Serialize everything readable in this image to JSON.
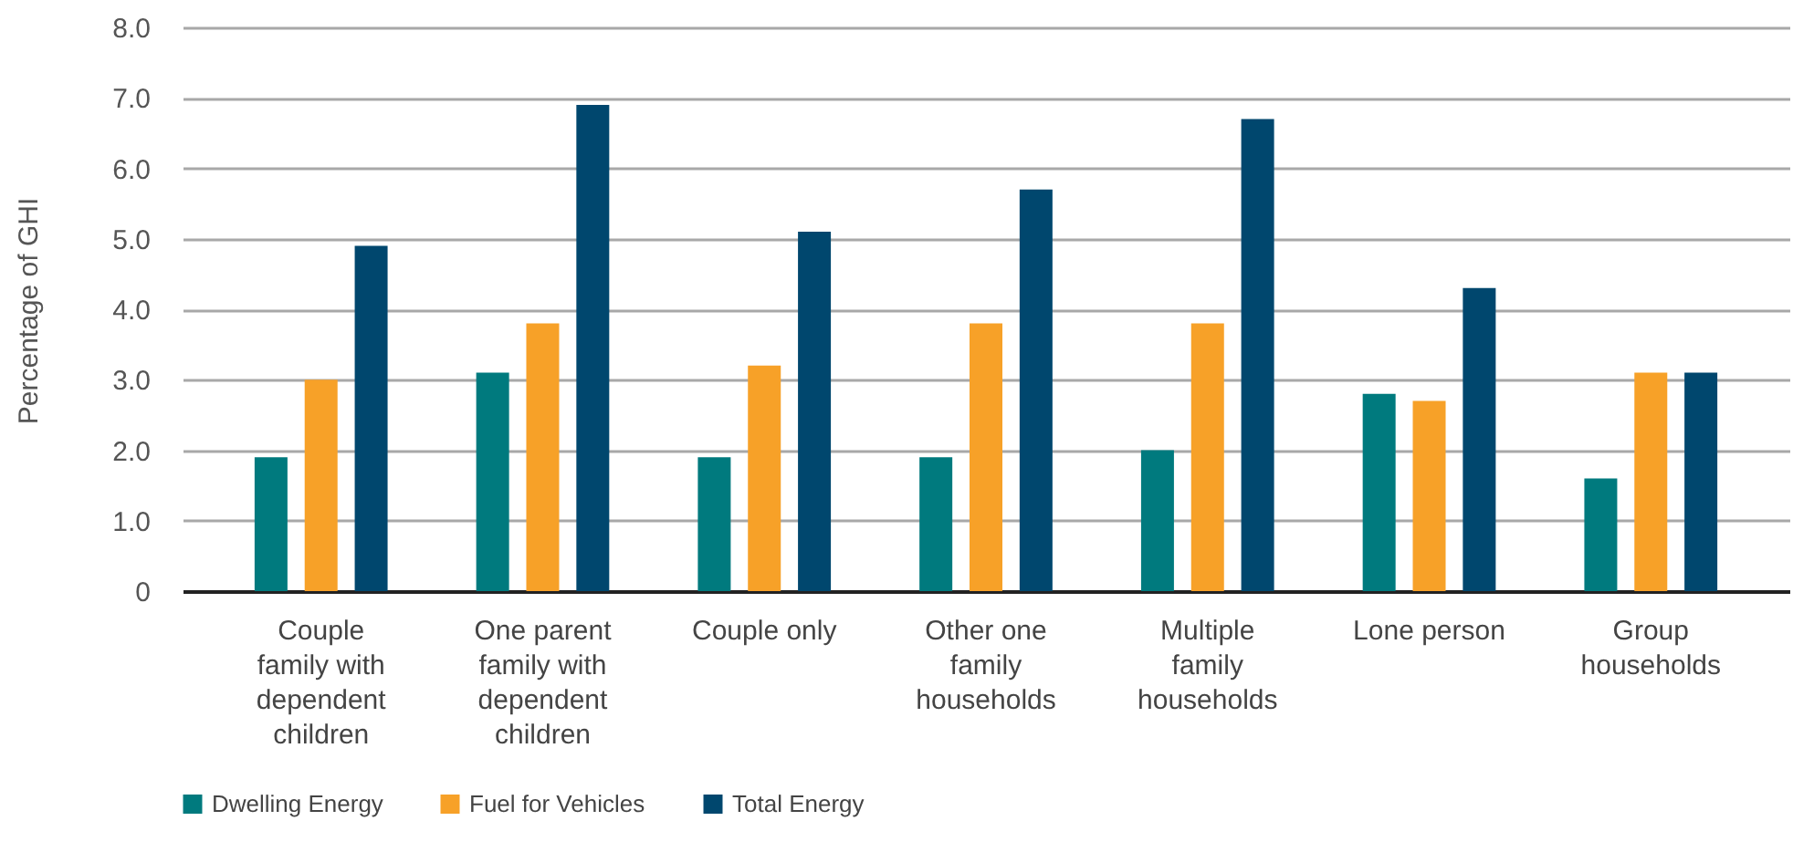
{
  "chart_data": {
    "type": "bar",
    "ylabel": "Percentage of GHI",
    "categories": [
      "Couple family with dependent children",
      "One parent family with dependent children",
      "Couple only",
      "Other one family households",
      "Multiple family households",
      "Lone person",
      "Group households"
    ],
    "series": [
      {
        "name": "Dwelling Energy",
        "color": "#007a7e",
        "values": [
          1.9,
          3.1,
          1.9,
          1.9,
          2.0,
          2.8,
          1.6
        ]
      },
      {
        "name": "Fuel for Vehicles",
        "color": "#f7a128",
        "values": [
          3.0,
          3.8,
          3.2,
          3.8,
          3.8,
          2.7,
          3.1
        ]
      },
      {
        "name": "Total Energy",
        "color": "#00476e",
        "values": [
          4.9,
          6.9,
          5.1,
          5.7,
          6.7,
          4.3,
          3.1
        ]
      }
    ],
    "ylim": [
      0,
      8
    ],
    "yticks": [
      0,
      {
        "value": 1,
        "label": "1.0"
      },
      {
        "value": 2,
        "label": "2.0"
      },
      {
        "value": 3,
        "label": "3.0"
      },
      {
        "value": 4,
        "label": "4.0"
      },
      {
        "value": 5,
        "label": "5.0"
      },
      {
        "value": 6,
        "label": "6.0"
      },
      {
        "value": 7,
        "label": "7.0"
      },
      {
        "value": 8,
        "label": "8.0"
      }
    ],
    "grid": "y",
    "legend": "bottom left"
  }
}
